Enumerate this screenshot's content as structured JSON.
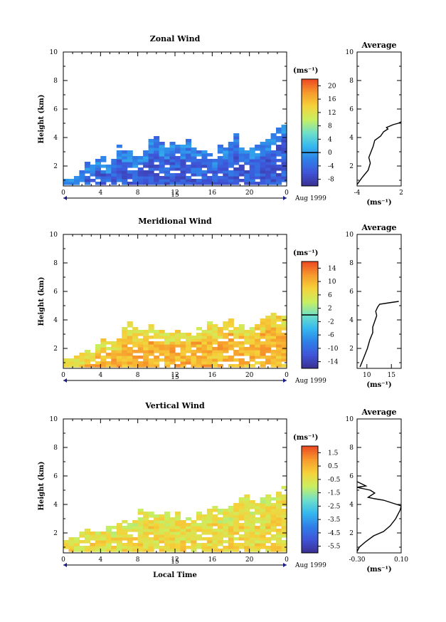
{
  "chart_data": [
    {
      "type": "heatmap",
      "title": "Zonal Wind",
      "ylabel": "Height (km)",
      "xlabel": "",
      "x_ticks": [
        "0",
        "4",
        "8",
        "12",
        "16",
        "20",
        "0"
      ],
      "y_ticks": [
        "2",
        "4",
        "6",
        "8",
        "10"
      ],
      "xlim": [
        0,
        24
      ],
      "ylim": [
        0.6,
        10
      ],
      "date_label": "15",
      "date_suffix": "Aug 1999",
      "colorbar": {
        "unit": "(ms⁻¹)",
        "ticks": [
          "-8",
          "-4",
          "0",
          "4",
          "8",
          "12",
          "16",
          "20"
        ],
        "range": [
          -10,
          22
        ],
        "zero_line": 0,
        "colors": [
          "#3a2f8e",
          "#3f54d8",
          "#2f7fe8",
          "#34b8ee",
          "#6fe0c8",
          "#c9ef60",
          "#f5d23a",
          "#f79a2c",
          "#ec4a22"
        ]
      },
      "profile_clip": [
        0.5,
        5.1
      ],
      "cells": {
        "base": -5,
        "edge": -2
      },
      "column_tops_km": [
        1,
        1,
        1.2,
        1.6,
        2.2,
        1.9,
        2.4,
        2.6,
        2.2,
        2.4,
        3.4,
        3.0,
        3.0,
        2.6,
        2.6,
        3.0,
        3.8,
        4.0,
        3.6,
        3.2,
        3.6,
        3.6,
        3.4,
        3.8,
        3.2,
        3.0,
        3.0,
        2.8,
        2.6,
        3.4,
        3.2,
        3.6,
        4.2,
        3.2,
        3.0,
        3.2,
        3.4,
        3.6,
        3.8,
        4.2,
        4.6,
        4.8
      ],
      "average": {
        "title": "Average",
        "xlabel": "(ms⁻¹)",
        "x_ticks": [
          "-4",
          "2"
        ],
        "xlim": [
          -4,
          2
        ],
        "y_ticks": [
          "2",
          "4",
          "6",
          "8",
          "10"
        ],
        "ylim": [
          0.6,
          10
        ],
        "profile": [
          [
            -4.0,
            0.7
          ],
          [
            -3.3,
            1.2
          ],
          [
            -2.5,
            1.7
          ],
          [
            -2.2,
            2.2
          ],
          [
            -2.4,
            2.6
          ],
          [
            -2.1,
            3.0
          ],
          [
            -1.8,
            3.4
          ],
          [
            -1.6,
            3.8
          ],
          [
            -0.8,
            4.1
          ],
          [
            -0.4,
            4.4
          ],
          [
            0.2,
            4.6
          ],
          [
            0.0,
            4.7
          ],
          [
            0.9,
            4.9
          ],
          [
            1.6,
            5.0
          ],
          [
            2.0,
            5.1
          ]
        ]
      }
    },
    {
      "type": "heatmap",
      "title": "Meridional Wind",
      "ylabel": "Height (km)",
      "xlabel": "",
      "x_ticks": [
        "0",
        "4",
        "8",
        "12",
        "16",
        "20",
        "0"
      ],
      "y_ticks": [
        "2",
        "4",
        "6",
        "8",
        "10"
      ],
      "xlim": [
        0,
        24
      ],
      "ylim": [
        0.6,
        10
      ],
      "date_label": "15",
      "date_suffix": "Aug 1999",
      "colorbar": {
        "unit": "(ms⁻¹)",
        "ticks": [
          "-14",
          "-10",
          "-6",
          "-2",
          "2",
          "6",
          "10",
          "14"
        ],
        "range": [
          -16,
          16
        ],
        "zero_line": 0,
        "colors": [
          "#3a2f8e",
          "#3f54d8",
          "#2f7fe8",
          "#34b8ee",
          "#6fe0c8",
          "#c9ef60",
          "#f5d23a",
          "#f79a2c",
          "#ec4a22"
        ]
      },
      "profile_clip": [
        0.5,
        5.2
      ],
      "cells": {
        "base": 10,
        "edge": 7
      },
      "column_tops_km": [
        1.1,
        1.1,
        1.4,
        1.6,
        1.8,
        1.6,
        2.2,
        2.6,
        2.6,
        2.4,
        2.6,
        3.4,
        3.8,
        3.4,
        3.2,
        3.2,
        3.6,
        3.4,
        3.2,
        3.0,
        3.0,
        3.2,
        3.0,
        3.0,
        3.2,
        3.4,
        3.6,
        3.8,
        3.6,
        3.4,
        3.8,
        4.0,
        3.6,
        3.8,
        3.2,
        3.4,
        3.6,
        4.0,
        4.2,
        4.4,
        4.2,
        4.3
      ],
      "average": {
        "title": "Average",
        "xlabel": "(ms⁻¹)",
        "x_ticks": [
          "10",
          "15"
        ],
        "xlim": [
          8,
          17
        ],
        "y_ticks": [
          "2",
          "4",
          "6",
          "8",
          "10"
        ],
        "ylim": [
          0.6,
          10
        ],
        "profile": [
          [
            8.6,
            0.7
          ],
          [
            9.3,
            1.3
          ],
          [
            10.1,
            2.0
          ],
          [
            10.6,
            2.6
          ],
          [
            11.2,
            3.1
          ],
          [
            11.2,
            3.5
          ],
          [
            11.6,
            3.9
          ],
          [
            12.0,
            4.3
          ],
          [
            11.8,
            4.6
          ],
          [
            12.2,
            4.9
          ],
          [
            12.6,
            5.1
          ],
          [
            14.5,
            5.2
          ],
          [
            16.5,
            5.3
          ]
        ]
      }
    },
    {
      "type": "heatmap",
      "title": "Vertical Wind",
      "ylabel": "Height (km)",
      "xlabel": "Local Time",
      "x_ticks": [
        "0",
        "4",
        "8",
        "12",
        "16",
        "20",
        "0"
      ],
      "y_ticks": [
        "2",
        "4",
        "6",
        "8",
        "10"
      ],
      "xlim": [
        0,
        24
      ],
      "ylim": [
        0.6,
        10
      ],
      "date_label": "15",
      "date_suffix": "Aug 1999",
      "colorbar": {
        "unit": "(ms⁻¹)",
        "ticks": [
          "-5.5",
          "-4.5",
          "-3.5",
          "-2.5",
          "-1.5",
          "-0.5",
          "0.5",
          "1.5"
        ],
        "range": [
          -6,
          2
        ],
        "zero_line": null,
        "colors": [
          "#3a2f8e",
          "#3f54d8",
          "#2f7fe8",
          "#34b8ee",
          "#6fe0c8",
          "#c9ef60",
          "#f5d23a",
          "#f79a2c",
          "#ec4a22"
        ]
      },
      "profile_clip": [
        0.5,
        5.8
      ],
      "cells": {
        "base": -0.25,
        "edge": -0.55
      },
      "column_tops_km": [
        1.4,
        1.6,
        1.6,
        2.0,
        2.2,
        2.2,
        2.2,
        2.4,
        2.4,
        2.4,
        2.6,
        2.8,
        2.8,
        2.8,
        3.6,
        3.6,
        3.4,
        3.2,
        3.2,
        3.4,
        3.2,
        3.4,
        3.0,
        3.0,
        3.2,
        3.4,
        3.2,
        3.6,
        3.8,
        3.6,
        3.6,
        3.8,
        4.0,
        4.4,
        4.6,
        4.2,
        4.0,
        4.4,
        4.6,
        4.4,
        4.8,
        5.2
      ],
      "average": {
        "title": "Average",
        "xlabel": "(ms⁻¹)",
        "x_ticks": [
          "-0.30",
          "0.10"
        ],
        "xlim": [
          -0.3,
          0.1
        ],
        "y_ticks": [
          "2",
          "4",
          "6",
          "8",
          "10"
        ],
        "ylim": [
          0.6,
          10
        ],
        "profile": [
          [
            -0.3,
            0.7
          ],
          [
            -0.28,
            1.0
          ],
          [
            -0.22,
            1.4
          ],
          [
            -0.15,
            1.8
          ],
          [
            -0.06,
            2.1
          ],
          [
            0.0,
            2.5
          ],
          [
            0.05,
            3.0
          ],
          [
            0.09,
            3.6
          ],
          [
            0.1,
            3.9
          ],
          [
            0.02,
            4.1
          ],
          [
            -0.06,
            4.3
          ],
          [
            -0.14,
            4.4
          ],
          [
            -0.2,
            4.5
          ],
          [
            -0.14,
            4.8
          ],
          [
            -0.18,
            5.0
          ],
          [
            -0.24,
            5.1
          ],
          [
            -0.3,
            5.2
          ],
          [
            -0.22,
            5.3
          ],
          [
            -0.3,
            5.6
          ]
        ]
      }
    }
  ]
}
